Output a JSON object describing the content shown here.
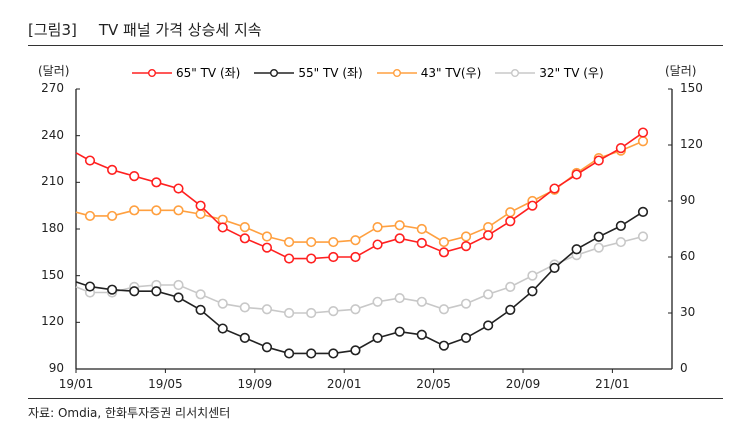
{
  "header": {
    "label": "[그림3]",
    "title": "TV 패널 가격 상승세 지속"
  },
  "source": "자료: Omdia, 한화투자증권 리서치센터",
  "chart_data": {
    "type": "line",
    "left_axis": {
      "unit": "(달러)",
      "ylim": [
        90,
        270
      ],
      "ticks": [
        "270",
        "240",
        "210",
        "180",
        "150",
        "120",
        "90"
      ]
    },
    "right_axis": {
      "unit": "(달러)",
      "ylim": [
        0,
        150
      ],
      "ticks": [
        "150",
        "120",
        "90",
        "60",
        "30",
        "0"
      ]
    },
    "x_ticks": [
      "19/01",
      "19/05",
      "19/09",
      "20/01",
      "20/05",
      "20/09",
      "21/01"
    ],
    "grid": false,
    "legend_position": "top",
    "series": [
      {
        "name": "65\"  TV (좌)",
        "axis": "left",
        "color": "#ff2020",
        "values": [
          229,
          224,
          218,
          214,
          210,
          206,
          195,
          181,
          174,
          168,
          161,
          161,
          162,
          162,
          170,
          174,
          171,
          165,
          169,
          176,
          185,
          195,
          206,
          215,
          224,
          232,
          242
        ]
      },
      {
        "name": "55\"  TV (좌)",
        "axis": "left",
        "color": "#222222",
        "values": [
          146,
          143,
          141,
          140,
          140,
          136,
          128,
          116,
          110,
          104,
          100,
          100,
          100,
          102,
          110,
          114,
          112,
          105,
          110,
          118,
          128,
          140,
          155,
          167,
          175,
          182,
          191
        ]
      },
      {
        "name": "43\"  TV(우)",
        "axis": "right",
        "color": "#ffa040",
        "values": [
          84,
          82,
          82,
          85,
          85,
          85,
          83,
          80,
          76,
          71,
          68,
          68,
          68,
          69,
          76,
          77,
          75,
          68,
          71,
          76,
          84,
          90,
          96,
          105,
          113,
          117,
          122
        ]
      },
      {
        "name": "32\"  TV (우)",
        "axis": "right",
        "color": "#c8c8c8",
        "values": [
          44,
          41,
          41,
          44,
          45,
          45,
          40,
          35,
          33,
          32,
          30,
          30,
          31,
          32,
          36,
          38,
          36,
          32,
          35,
          40,
          44,
          50,
          56,
          61,
          65,
          68,
          71
        ]
      }
    ]
  }
}
